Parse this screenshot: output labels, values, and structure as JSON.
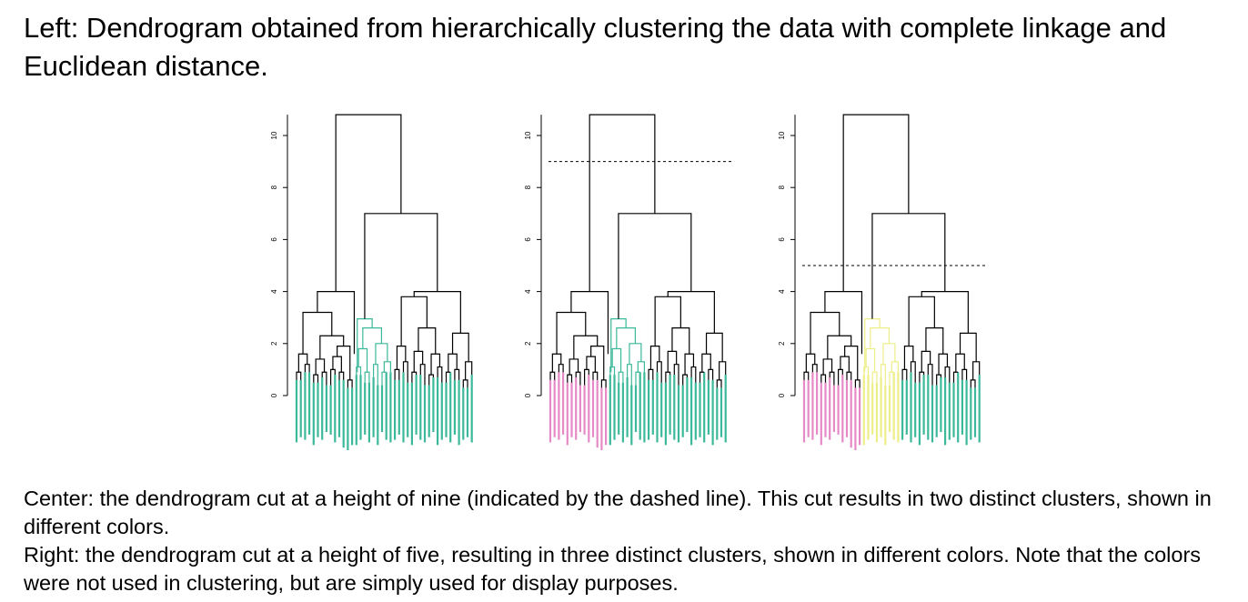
{
  "title": "Left: Dendrogram obtained from hierarchically clustering the data with complete linkage and Euclidean distance.",
  "caption": {
    "center": "Center: the dendrogram cut at a height of nine (indicated by the dashed line). This cut results in two distinct clusters, shown in different colors.",
    "right": "Right: the dendrogram cut at a height of five, resulting in three distinct clusters, shown in different colors. Note that the colors were not used in clustering, but are simply used for display purposes."
  },
  "colors": {
    "tree": "#000000",
    "teal": "#3cb89a",
    "pink": "#e58ac6",
    "yellow": "#eeee88"
  },
  "axis": {
    "ticks": [
      "0",
      "2",
      "4",
      "6",
      "8",
      "10"
    ]
  },
  "panels": [
    {
      "name": "left",
      "cut_height": null
    },
    {
      "name": "center",
      "cut_height": 9
    },
    {
      "name": "right",
      "cut_height": 5
    }
  ]
}
